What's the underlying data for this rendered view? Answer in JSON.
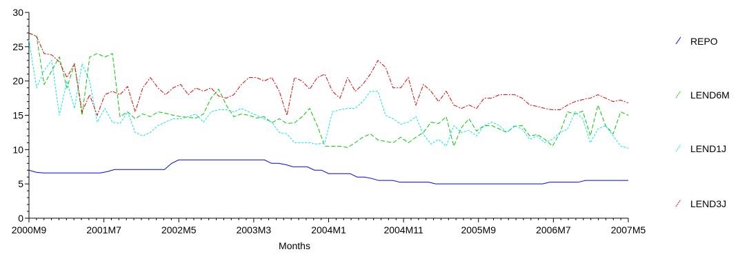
{
  "chart_data": {
    "type": "line",
    "title": "",
    "xlabel": "Months",
    "ylabel": "",
    "ylim": [
      0,
      30
    ],
    "yticks": [
      0,
      5,
      10,
      15,
      20,
      25,
      30
    ],
    "x_tick_labels": [
      "2000M9",
      "2001M7",
      "2002M5",
      "2003M3",
      "2004M1",
      "2004M11",
      "2005M9",
      "2006M7",
      "2007M5"
    ],
    "grid": false,
    "legend_position": "right",
    "series": [
      {
        "name": "REPO",
        "color": "#0000ff",
        "dash": "solid",
        "values": [
          7.0,
          6.7,
          6.6,
          6.6,
          6.6,
          6.6,
          6.6,
          6.6,
          6.6,
          6.6,
          6.6,
          6.8,
          7.1,
          7.1,
          7.1,
          7.1,
          7.1,
          7.1,
          7.1,
          7.1,
          8.0,
          8.5,
          8.5,
          8.5,
          8.5,
          8.5,
          8.5,
          8.5,
          8.5,
          8.5,
          8.5,
          8.5,
          8.5,
          8.5,
          8.0,
          8.0,
          7.8,
          7.5,
          7.5,
          7.5,
          7.0,
          7.0,
          6.5,
          6.5,
          6.5,
          6.5,
          6.0,
          6.0,
          5.8,
          5.5,
          5.5,
          5.5,
          5.25,
          5.25,
          5.25,
          5.25,
          5.25,
          5.0,
          5.0,
          5.0,
          5.0,
          5.0,
          5.0,
          5.0,
          5.0,
          5.0,
          5.0,
          5.0,
          5.0,
          5.0,
          5.0,
          5.0,
          5.0,
          5.25,
          5.25,
          5.25,
          5.25,
          5.25,
          5.5,
          5.5,
          5.5,
          5.5,
          5.5,
          5.5,
          5.5
        ]
      },
      {
        "name": "LEND6M",
        "color": "#00c800",
        "dash": "long",
        "values": [
          27.0,
          26.5,
          19.5,
          21.5,
          23.5,
          19.0,
          22.5,
          15.0,
          23.5,
          24.0,
          23.5,
          24.0,
          14.8,
          15.5,
          14.5,
          15.2,
          14.8,
          15.5,
          15.3,
          15.0,
          14.8,
          14.7,
          14.6,
          15.2,
          17.5,
          18.8,
          16.5,
          14.8,
          15.2,
          15.0,
          14.6,
          14.8,
          13.9,
          14.5,
          13.8,
          13.9,
          14.8,
          16.0,
          13.5,
          10.5,
          10.5,
          10.5,
          10.3,
          11.0,
          11.8,
          12.3,
          11.4,
          11.2,
          11.0,
          11.8,
          11.0,
          11.8,
          12.5,
          14.0,
          13.8,
          14.8,
          10.5,
          13.2,
          14.5,
          12.7,
          13.5,
          13.5,
          13.0,
          12.5,
          13.4,
          13.5,
          12.0,
          12.2,
          11.5,
          10.5,
          12.5,
          15.5,
          15.2,
          15.6,
          12.0,
          16.5,
          13.5,
          12.3,
          15.5,
          15.0
        ]
      },
      {
        "name": "LEND1J",
        "color": "#00e8e8",
        "dash": "short",
        "values": [
          26.0,
          19.0,
          21.5,
          23.0,
          15.0,
          20.0,
          16.0,
          22.5,
          20.0,
          14.0,
          16.0,
          14.0,
          13.8,
          15.5,
          12.5,
          12.0,
          12.5,
          13.5,
          14.0,
          14.5,
          14.5,
          14.8,
          15.2,
          14.0,
          15.5,
          15.8,
          15.8,
          15.5,
          16.0,
          15.5,
          15.0,
          14.5,
          14.0,
          12.5,
          12.3,
          11.0,
          11.0,
          11.0,
          10.8,
          11.0,
          15.5,
          15.8,
          16.0,
          16.0,
          17.0,
          18.5,
          18.5,
          15.0,
          14.5,
          13.7,
          14.0,
          14.8,
          12.2,
          10.8,
          11.5,
          10.5,
          13.5,
          12.5,
          12.8,
          12.0,
          13.5,
          14.0,
          13.5,
          12.5,
          13.5,
          13.0,
          11.5,
          12.0,
          11.0,
          11.5,
          12.5,
          13.0,
          15.5,
          14.5,
          11.0,
          13.0,
          13.5,
          12.0,
          10.5,
          10.2
        ]
      },
      {
        "name": "LEND3J",
        "color": "#e00000",
        "dash": "dashdot",
        "values": [
          27.0,
          26.5,
          24.0,
          23.8,
          22.8,
          20.5,
          22.5,
          15.5,
          18.0,
          15.0,
          18.0,
          18.5,
          18.0,
          19.2,
          15.5,
          19.0,
          20.5,
          19.0,
          18.0,
          19.0,
          19.5,
          18.0,
          19.0,
          18.5,
          19.0,
          17.8,
          17.5,
          18.0,
          19.5,
          20.5,
          20.5,
          20.0,
          20.5,
          18.5,
          15.0,
          20.5,
          20.0,
          18.8,
          20.5,
          21.0,
          18.5,
          17.5,
          20.5,
          18.5,
          19.5,
          21.0,
          23.0,
          22.0,
          19.0,
          19.0,
          20.5,
          16.5,
          19.5,
          18.5,
          17.0,
          18.5,
          16.5,
          16.0,
          16.5,
          16.0,
          17.5,
          17.5,
          18.0,
          18.0,
          18.0,
          17.5,
          16.5,
          16.3,
          16.0,
          15.8,
          15.8,
          16.5,
          17.0,
          17.3,
          17.5,
          18.0,
          17.5,
          17.0,
          17.2,
          16.8
        ]
      }
    ]
  }
}
